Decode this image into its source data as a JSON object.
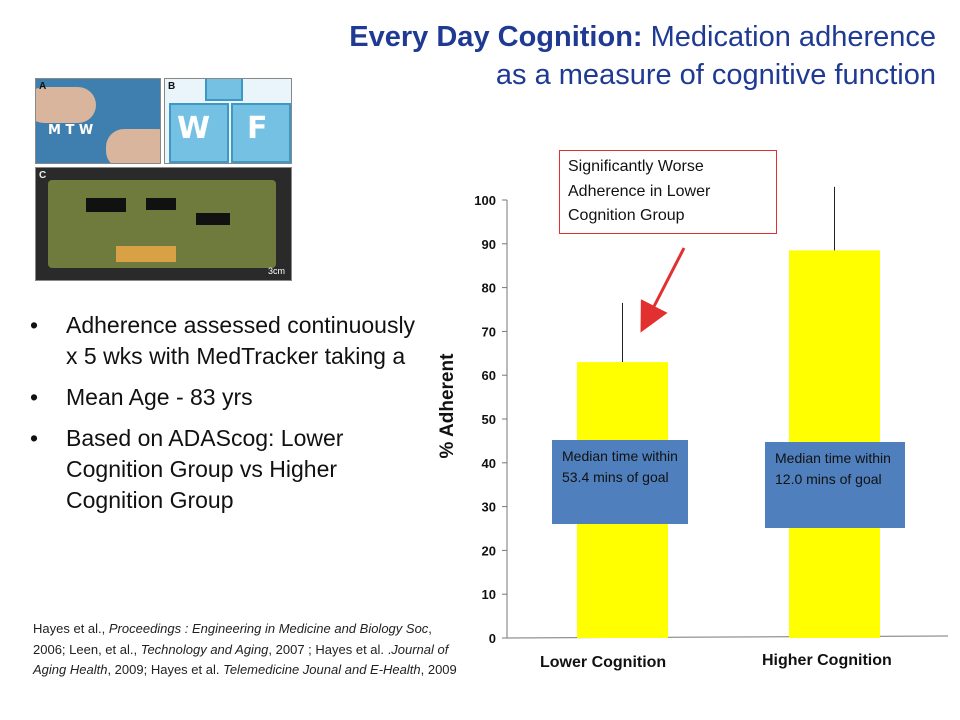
{
  "title": {
    "bold": "Every Day Cognition:",
    "rest_line1": " Medication adherence",
    "line2": "as a measure of cognitive function"
  },
  "photo_letters": {
    "a": "A",
    "b": "B",
    "c": "C"
  },
  "photo_text": {
    "a_days": "M T W",
    "b_left": "W",
    "b_right": "F",
    "c_scale": "3cm"
  },
  "bullets": [
    "Adherence assessed continuously  x 5 wks with MedTracker taking a",
    "Mean Age - 83 yrs",
    "Based on ADAScog: Lower Cognition Group vs Higher Cognition Group"
  ],
  "citation": {
    "p1": "Hayes et al., ",
    "i1": "Proceedings : Engineering in Medicine and Biology Soc",
    "p2": ", 2006; Leen, et al., ",
    "i2": "Technology and Aging",
    "p3": ", 2007 ; Hayes et al.  .",
    "i3": "Journal of Aging Health",
    "p4": ", 2009; Hayes et al. ",
    "i4": "Telemedicine Jounal and E-Health",
    "p5": ", 2009"
  },
  "callout": "Significantly Worse Adherence in Lower Cognition Group",
  "medians": [
    "Median time within 53.4 mins of goal",
    "Median time within 12.0 mins of goal"
  ],
  "colors": {
    "title": "#1f3a93",
    "bar": "#ffff00",
    "median_box": "#4f80bd",
    "callout_border": "#e23030",
    "arrow": "#e23030"
  },
  "chart_data": {
    "type": "bar",
    "title": "",
    "xlabel": "",
    "ylabel": "% Adherent",
    "categories": [
      "Lower Cognition",
      "Higher Cognition"
    ],
    "values": [
      63,
      88.5
    ],
    "error_upper": [
      76.5,
      103
    ],
    "ylim": [
      0,
      100
    ],
    "yticks": [
      0,
      10,
      20,
      30,
      40,
      50,
      60,
      70,
      80,
      90,
      100
    ],
    "grid": false
  }
}
